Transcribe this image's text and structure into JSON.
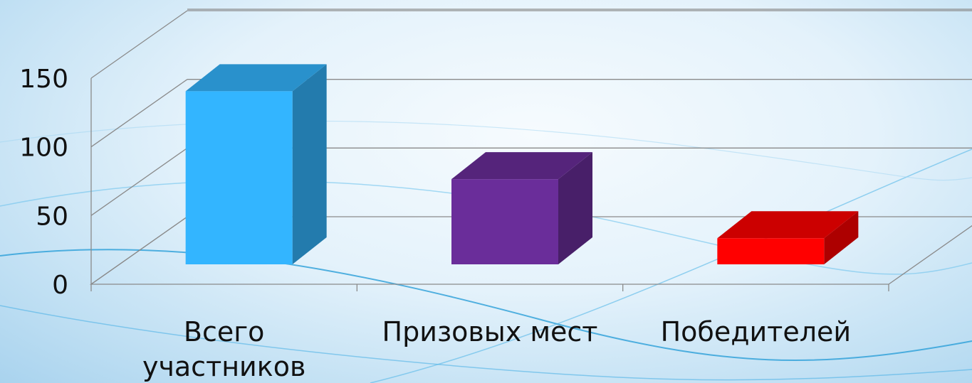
{
  "chart_data": {
    "type": "bar",
    "style": "3d-column",
    "categories": [
      "Всего участников",
      "Призовых мест",
      "Победителей"
    ],
    "category_label_lines": [
      [
        "Всего",
        "участников"
      ],
      [
        "Призовых мест"
      ],
      [
        "Победителей"
      ]
    ],
    "values": [
      126,
      62,
      19
    ],
    "colors": [
      "#33b5ff",
      "#6a2d9a",
      "#ff0000"
    ],
    "yticks": [
      0,
      50,
      100,
      150
    ],
    "ylim": [
      0,
      150
    ],
    "grid": true,
    "legend": false,
    "title": "",
    "xlabel": "",
    "ylabel": ""
  }
}
